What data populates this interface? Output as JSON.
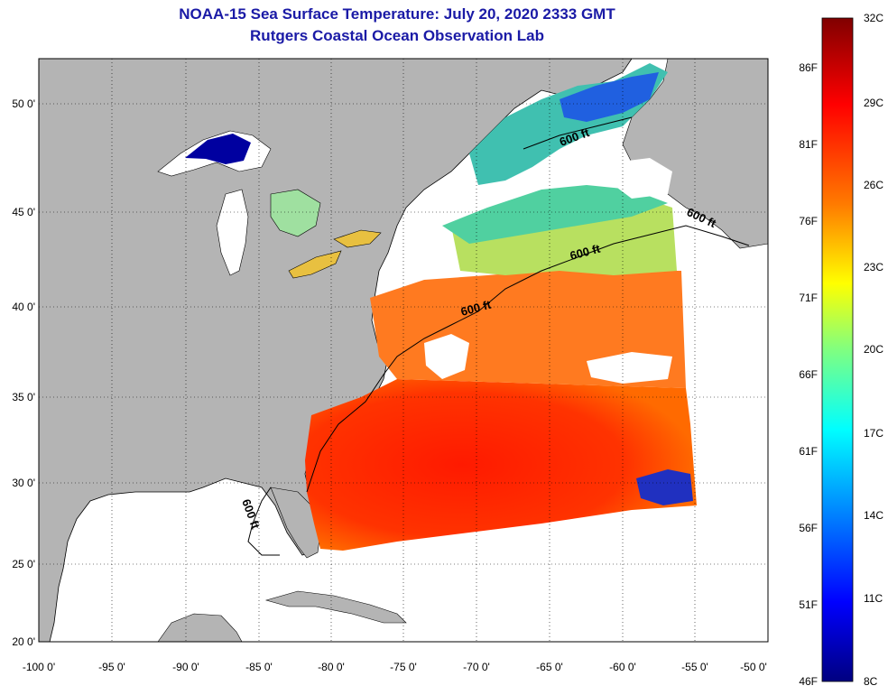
{
  "header": {
    "title_line1": "NOAA-15 Sea Surface Temperature:  July 20, 2020 2333 GMT",
    "title_line2": "Rutgers Coastal Ocean Observation Lab"
  },
  "map": {
    "lat_labels": [
      "50 0'",
      "45 0'",
      "40 0'",
      "35 0'",
      "30 0'",
      "25 0'",
      "20 0'"
    ],
    "lon_labels": [
      "-100 0'",
      "-95 0'",
      "-90 0'",
      "-85 0'",
      "-80 0'",
      "-75 0'",
      "-70 0'",
      "-65 0'",
      "-60 0'",
      "-55 0'",
      "-50 0'"
    ],
    "contour_labels": [
      "600 ft",
      "600 ft",
      "600 ft",
      "600 ft",
      "600 ft"
    ],
    "colors": {
      "land": "#b4b4b4",
      "cloud": "#ffffff",
      "coast": "#000000"
    }
  },
  "colorbar": {
    "fahrenheit_labels": [
      "86F",
      "81F",
      "76F",
      "71F",
      "66F",
      "61F",
      "56F",
      "51F",
      "46F"
    ],
    "celsius_labels": [
      "32C",
      "29C",
      "26C",
      "23C",
      "20C",
      "17C",
      "14C",
      "11C",
      "8C"
    ],
    "gradient_colors": [
      "#800000",
      "#ff0000",
      "#ff8000",
      "#ffff00",
      "#80ff80",
      "#00ffff",
      "#0080ff",
      "#0000ff",
      "#000080"
    ]
  }
}
